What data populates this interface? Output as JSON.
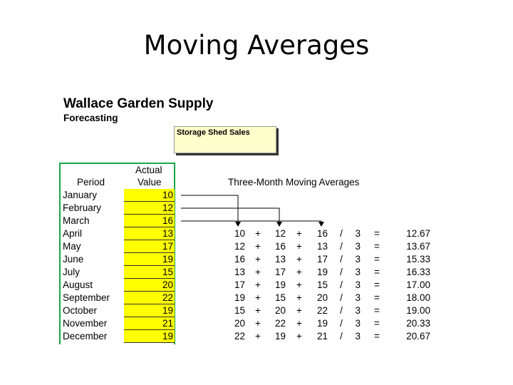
{
  "slide": {
    "title": "Moving Averages"
  },
  "sheet": {
    "company": "Wallace Garden Supply",
    "subtitle": "Forecasting",
    "box_label": "Storage Shed Sales",
    "col_headers": {
      "period": "Period",
      "actual_line1": "Actual",
      "actual_line2": "Value"
    },
    "ma_title": "Three-Month Moving Averages",
    "months": [
      "January",
      "February",
      "March",
      "April",
      "May",
      "June",
      "July",
      "August",
      "September",
      "October",
      "November",
      "December"
    ],
    "actual": [
      "10",
      "12",
      "16",
      "13",
      "17",
      "19",
      "15",
      "20",
      "22",
      "19",
      "21",
      "19"
    ],
    "ma_rows": [
      [
        "10",
        "12",
        "16",
        "3",
        "12.67"
      ],
      [
        "12",
        "16",
        "13",
        "3",
        "13.67"
      ],
      [
        "16",
        "13",
        "17",
        "3",
        "15.33"
      ],
      [
        "13",
        "17",
        "19",
        "3",
        "16.33"
      ],
      [
        "17",
        "19",
        "15",
        "3",
        "17.00"
      ],
      [
        "19",
        "15",
        "20",
        "3",
        "18.00"
      ],
      [
        "15",
        "20",
        "22",
        "3",
        "19.00"
      ],
      [
        "20",
        "22",
        "19",
        "3",
        "20.33"
      ],
      [
        "22",
        "19",
        "21",
        "3",
        "20.67"
      ]
    ],
    "symbols": {
      "plus": "+",
      "div": "/",
      "eq": "="
    }
  }
}
